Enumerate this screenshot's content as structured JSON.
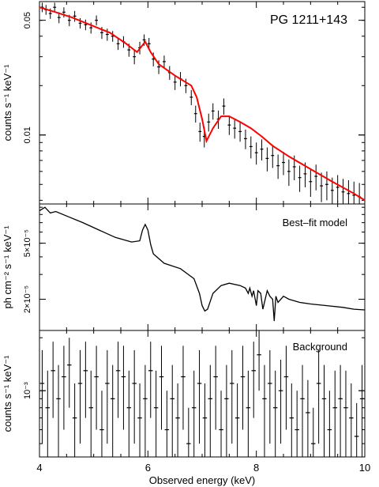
{
  "chart_data": [
    {
      "type": "scatter",
      "title": "PG 1211+143",
      "xlabel": "",
      "ylabel": "counts s⁻¹ keV⁻¹",
      "xlim": [
        4,
        10
      ],
      "ylim": [
        0.0038,
        0.065
      ],
      "yscale": "log",
      "yticks": [
        {
          "value": 0.05,
          "label": "0.05"
        },
        {
          "value": 0.01,
          "label": "0.01"
        }
      ],
      "series": [
        {
          "kind": "data-with-errors",
          "color": "#000000",
          "x": [
            4.05,
            4.12,
            4.2,
            4.28,
            4.36,
            4.45,
            4.55,
            4.65,
            4.75,
            4.85,
            4.95,
            5.05,
            5.15,
            5.25,
            5.35,
            5.45,
            5.55,
            5.65,
            5.75,
            5.85,
            5.93,
            6.02,
            6.1,
            6.2,
            6.3,
            6.4,
            6.5,
            6.6,
            6.7,
            6.8,
            6.88,
            6.96,
            7.04,
            7.12,
            7.2,
            7.3,
            7.4,
            7.5,
            7.6,
            7.7,
            7.8,
            7.9,
            8.0,
            8.1,
            8.2,
            8.3,
            8.4,
            8.5,
            8.6,
            8.7,
            8.8,
            8.9,
            9.0,
            9.1,
            9.2,
            9.3,
            9.4,
            9.5,
            9.6,
            9.7,
            9.8,
            9.9
          ],
          "y": [
            0.06,
            0.058,
            0.055,
            0.06,
            0.052,
            0.056,
            0.05,
            0.053,
            0.048,
            0.047,
            0.045,
            0.05,
            0.042,
            0.041,
            0.04,
            0.036,
            0.037,
            0.033,
            0.03,
            0.034,
            0.038,
            0.036,
            0.029,
            0.026,
            0.028,
            0.024,
            0.021,
            0.022,
            0.02,
            0.017,
            0.0135,
            0.0105,
            0.0098,
            0.012,
            0.014,
            0.0125,
            0.015,
            0.0115,
            0.011,
            0.0105,
            0.0095,
            0.0085,
            0.0078,
            0.0082,
            0.0072,
            0.0075,
            0.0065,
            0.0068,
            0.006,
            0.0064,
            0.0055,
            0.0058,
            0.0052,
            0.0056,
            0.0049,
            0.005,
            0.0046,
            0.0048,
            0.0045,
            0.0044,
            0.0043,
            0.0042
          ],
          "yerr": [
            0.004,
            0.004,
            0.004,
            0.004,
            0.004,
            0.004,
            0.004,
            0.004,
            0.0035,
            0.0035,
            0.0035,
            0.0035,
            0.0035,
            0.0035,
            0.003,
            0.003,
            0.003,
            0.003,
            0.003,
            0.003,
            0.003,
            0.003,
            0.0028,
            0.0025,
            0.0025,
            0.0023,
            0.0022,
            0.0022,
            0.002,
            0.0018,
            0.0016,
            0.0014,
            0.0014,
            0.0015,
            0.0016,
            0.0016,
            0.0017,
            0.0015,
            0.0015,
            0.0014,
            0.0013,
            0.0013,
            0.0012,
            0.0012,
            0.0012,
            0.0012,
            0.0011,
            0.0011,
            0.0011,
            0.0011,
            0.001,
            0.001,
            0.001,
            0.001,
            0.001,
            0.001,
            0.0009,
            0.0009,
            0.0009,
            0.0009,
            0.0009,
            0.0009
          ]
        },
        {
          "kind": "model",
          "color": "#ff0000",
          "x": [
            4.0,
            4.3,
            4.6,
            5.0,
            5.3,
            5.6,
            5.8,
            5.95,
            6.05,
            6.2,
            6.5,
            6.8,
            6.9,
            7.0,
            7.08,
            7.2,
            7.35,
            7.5,
            7.7,
            7.9,
            8.1,
            8.3,
            8.6,
            9.0,
            9.4,
            9.8,
            10.0
          ],
          "y": [
            0.06,
            0.056,
            0.052,
            0.046,
            0.042,
            0.036,
            0.032,
            0.037,
            0.032,
            0.027,
            0.023,
            0.02,
            0.017,
            0.0125,
            0.0092,
            0.011,
            0.013,
            0.013,
            0.012,
            0.011,
            0.0098,
            0.0086,
            0.0074,
            0.0062,
            0.0052,
            0.0044,
            0.004
          ]
        }
      ]
    },
    {
      "type": "line",
      "title": "Best–fit model",
      "xlabel": "",
      "ylabel": "ph cm⁻² s⁻¹ keV⁻¹",
      "xlim": [
        4,
        10
      ],
      "ylim": [
        1.2e-05,
        9.5e-05
      ],
      "yscale": "log",
      "yticks": [
        {
          "value": 5e-05,
          "label": "5×10⁻⁵"
        },
        {
          "value": 2e-05,
          "label": "2×10⁻⁵"
        }
      ],
      "series": [
        {
          "color": "#000000",
          "x": [
            4.0,
            4.1,
            4.2,
            4.3,
            4.5,
            4.8,
            5.1,
            5.4,
            5.7,
            5.85,
            5.9,
            5.95,
            6.0,
            6.05,
            6.1,
            6.3,
            6.6,
            6.85,
            6.95,
            7.0,
            7.05,
            7.1,
            7.2,
            7.35,
            7.5,
            7.7,
            7.8,
            7.85,
            7.88,
            7.92,
            7.95,
            8.0,
            8.03,
            8.08,
            8.12,
            8.2,
            8.25,
            8.3,
            8.33,
            8.36,
            8.4,
            8.5,
            8.6,
            8.8,
            9.0,
            9.3,
            9.6,
            9.8,
            10.0
          ],
          "y": [
            8.5e-05,
            9e-05,
            8.2e-05,
            8.4e-05,
            7.8e-05,
            7e-05,
            6.2e-05,
            5.5e-05,
            5.1e-05,
            5.2e-05,
            6.2e-05,
            6.8e-05,
            6.2e-05,
            4.9e-05,
            4.2e-05,
            3.6e-05,
            3.3e-05,
            2.8e-05,
            2.2e-05,
            1.8e-05,
            1.65e-05,
            1.7e-05,
            2.2e-05,
            2.5e-05,
            2.6e-05,
            2.5e-05,
            2.4e-05,
            2.2e-05,
            2.4e-05,
            2.1e-05,
            2.3e-05,
            1.8e-05,
            2.3e-05,
            2.2e-05,
            1.7e-05,
            2.3e-05,
            2.1e-05,
            2e-05,
            1.4e-05,
            2.1e-05,
            1.9e-05,
            2.1e-05,
            2e-05,
            1.9e-05,
            1.85e-05,
            1.8e-05,
            1.75e-05,
            1.7e-05,
            1.68e-05
          ]
        }
      ]
    },
    {
      "type": "scatter",
      "title": "Background",
      "xlabel": "Observed energy (keV)",
      "ylabel": "counts s⁻¹ keV⁻¹",
      "xlim": [
        4,
        10
      ],
      "ylim": [
        0.00042,
        0.0022
      ],
      "yscale": "log",
      "yticks": [
        {
          "value": 0.001,
          "label": "10⁻³"
        }
      ],
      "xticks": [
        {
          "value": 4,
          "label": "4"
        },
        {
          "value": 6,
          "label": "6"
        },
        {
          "value": 8,
          "label": "8"
        },
        {
          "value": 10,
          "label": "10"
        }
      ],
      "series": [
        {
          "kind": "data-with-errors",
          "color": "#000000",
          "x": [
            4.05,
            4.15,
            4.25,
            4.35,
            4.45,
            4.55,
            4.65,
            4.75,
            4.85,
            4.95,
            5.05,
            5.15,
            5.25,
            5.35,
            5.45,
            5.55,
            5.65,
            5.75,
            5.85,
            5.95,
            6.05,
            6.15,
            6.25,
            6.35,
            6.45,
            6.55,
            6.65,
            6.75,
            6.85,
            6.95,
            7.05,
            7.15,
            7.25,
            7.35,
            7.45,
            7.55,
            7.65,
            7.75,
            7.85,
            7.95,
            8.05,
            8.15,
            8.25,
            8.35,
            8.45,
            8.55,
            8.65,
            8.75,
            8.85,
            8.95,
            9.05,
            9.15,
            9.25,
            9.35,
            9.45,
            9.55,
            9.65,
            9.75,
            9.85,
            9.95
          ],
          "y": [
            0.0011,
            0.0008,
            0.0013,
            0.0009,
            0.0012,
            0.0014,
            0.0007,
            0.0011,
            0.0013,
            0.0008,
            0.0012,
            0.0006,
            0.0011,
            0.0009,
            0.0013,
            0.0012,
            0.0008,
            0.0011,
            0.0007,
            0.0009,
            0.0013,
            0.0008,
            0.0012,
            0.0006,
            0.0009,
            0.0007,
            0.0012,
            0.0005,
            0.0008,
            0.0011,
            0.0007,
            0.0009,
            0.0012,
            0.0006,
            0.0009,
            0.0011,
            0.0007,
            0.0012,
            0.0008,
            0.0013,
            0.0016,
            0.0009,
            0.0011,
            0.0008,
            0.001,
            0.0012,
            0.0007,
            0.0006,
            0.0009,
            0.00075,
            0.0005,
            0.0011,
            0.0009,
            0.0006,
            0.0008,
            0.0009,
            0.0008,
            0.0007,
            0.00055,
            0.0009
          ],
          "yerr": [
            0.0006,
            0.0005,
            0.0006,
            0.0005,
            0.0006,
            0.0006,
            0.0004,
            0.0006,
            0.0006,
            0.0005,
            0.0006,
            0.0004,
            0.0006,
            0.0005,
            0.0006,
            0.0006,
            0.0005,
            0.0006,
            0.0004,
            0.0005,
            0.0006,
            0.0005,
            0.0006,
            0.0004,
            0.0005,
            0.0004,
            0.0006,
            0.0003,
            0.0005,
            0.0006,
            0.0004,
            0.0005,
            0.0006,
            0.0004,
            0.0005,
            0.0006,
            0.0004,
            0.0006,
            0.0005,
            0.0006,
            0.0006,
            0.0005,
            0.0006,
            0.0005,
            0.0005,
            0.0006,
            0.0004,
            0.0004,
            0.0005,
            0.0004,
            0.0003,
            0.0006,
            0.0005,
            0.0004,
            0.0005,
            0.0005,
            0.0005,
            0.0004,
            0.0003,
            0.0005
          ]
        }
      ]
    }
  ]
}
